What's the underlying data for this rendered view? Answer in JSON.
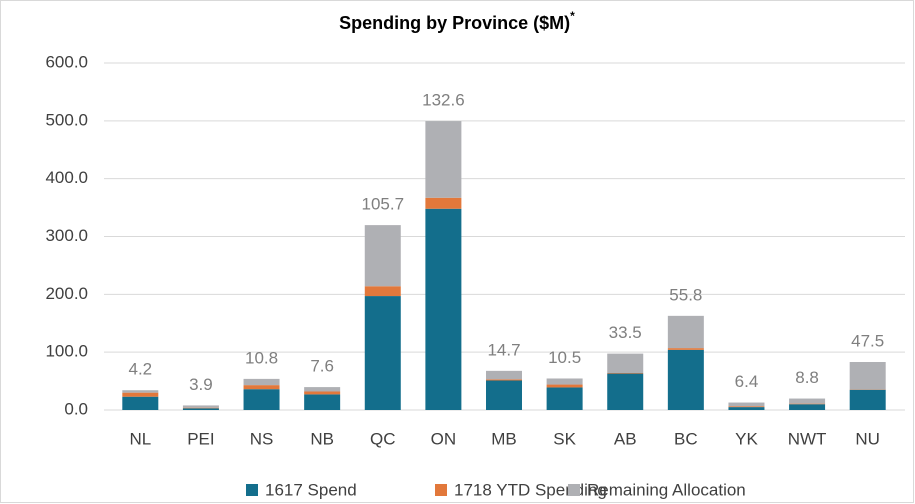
{
  "chart_data": {
    "type": "stacked_bar",
    "title": "Spending by Province ($M)",
    "title_note": "*",
    "categories": [
      "NL",
      "PEI",
      "NS",
      "NB",
      "QC",
      "ON",
      "MB",
      "SK",
      "AB",
      "BC",
      "YK",
      "NWT",
      "NU"
    ],
    "series": [
      {
        "name": "1617 Spend",
        "color": "#136e8c",
        "values": [
          23,
          3,
          36,
          27,
          197,
          348,
          51,
          39,
          63,
          104,
          5,
          10,
          35
        ]
      },
      {
        "name": "1718 YTD Spending",
        "color": "#e2783b",
        "values": [
          7,
          1,
          7,
          5,
          17,
          19,
          2,
          5,
          1,
          3,
          1.5,
          1,
          0.5
        ]
      },
      {
        "name": "Remaining Allocation",
        "color": "#afb0b4",
        "values": [
          4.2,
          3.9,
          10.8,
          7.6,
          105.7,
          132.6,
          14.7,
          10.5,
          33.5,
          55.8,
          6.4,
          8.8,
          47.5
        ]
      }
    ],
    "ylim": [
      0,
      600
    ],
    "yticks": [
      {
        "value": 0,
        "label": "0.0"
      },
      {
        "value": 100,
        "label": "100.0"
      },
      {
        "value": 200,
        "label": "200.0"
      },
      {
        "value": 300,
        "label": "300.0"
      },
      {
        "value": 400,
        "label": "400.0"
      },
      {
        "value": 500,
        "label": "500.0"
      },
      {
        "value": 600,
        "label": "600.0"
      }
    ],
    "grid": true,
    "legend": "bottom"
  }
}
